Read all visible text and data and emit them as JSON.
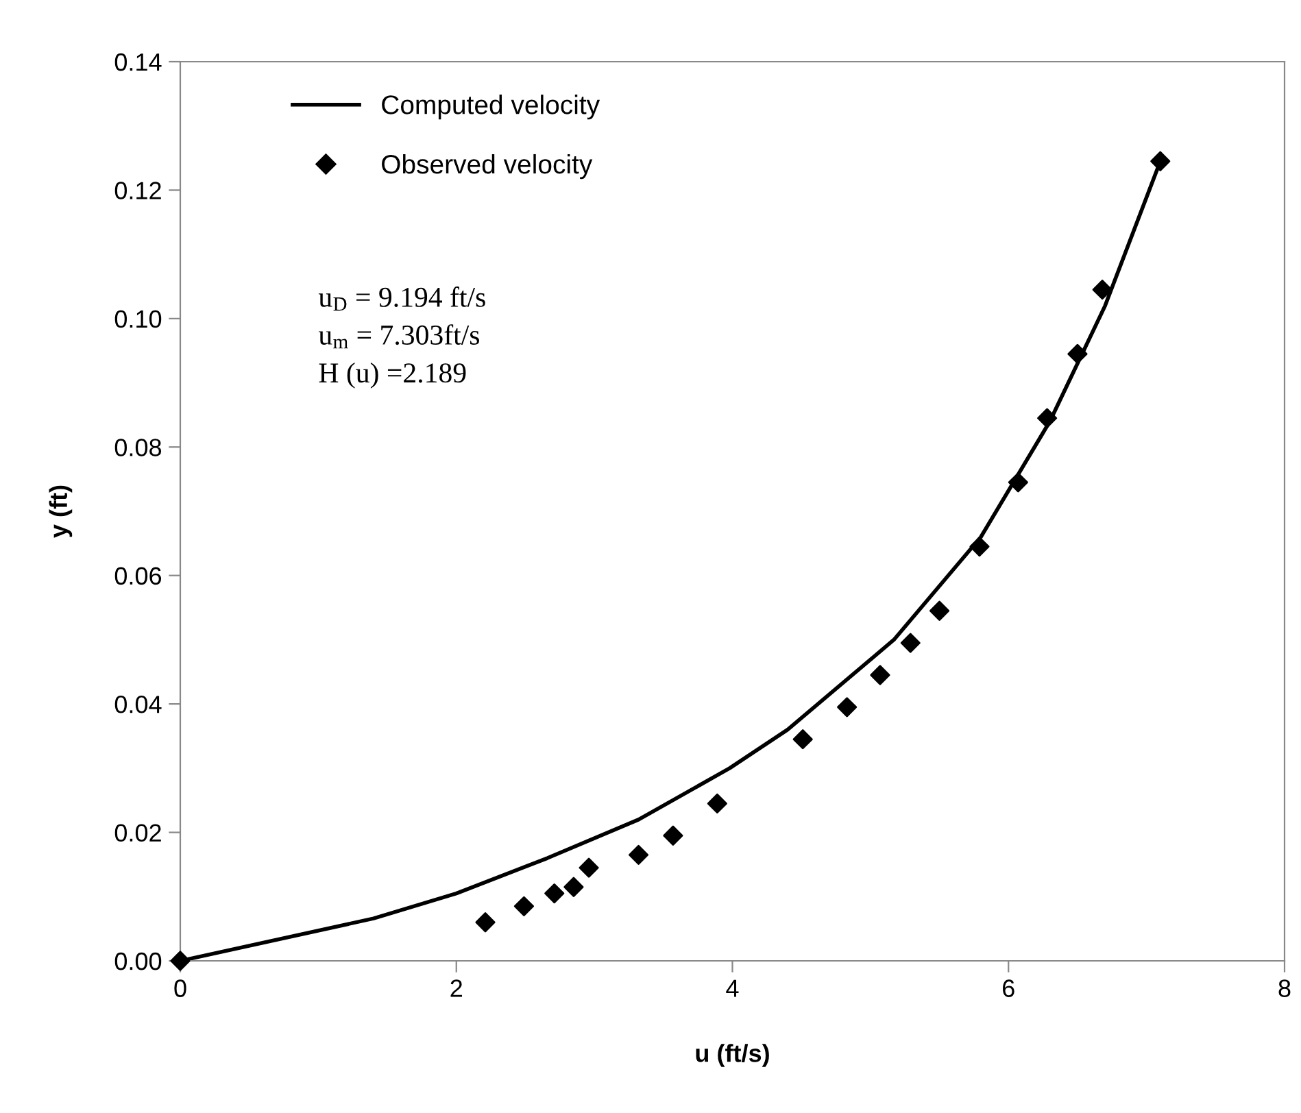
{
  "chart_data": {
    "type": "scatter",
    "xlabel": "u (ft/s)",
    "ylabel": "y (ft)",
    "series": [
      {
        "name": "Computed velocity",
        "type": "line",
        "color": "#000000",
        "marker": "none",
        "line_style": "solid",
        "x": [
          0,
          1.4,
          2,
          2.66,
          3.32,
          3.98,
          4.4,
          5.17,
          5.8,
          6.3,
          6.7,
          7.1
        ],
        "values": [
          0,
          0.0066,
          0.0105,
          0.016,
          0.022,
          0.03,
          0.036,
          0.05,
          0.066,
          0.084,
          0.102,
          0.1245
        ]
      },
      {
        "name": "Observed velocity",
        "color": "#000000",
        "marker": "diamond",
        "x": [
          0,
          2.21,
          2.49,
          2.71,
          2.85,
          2.96,
          3.32,
          3.57,
          3.89,
          4.51,
          4.83,
          5.07,
          5.29,
          5.5,
          5.79,
          6.07,
          6.28,
          6.5,
          6.68,
          7.1
        ],
        "values": [
          0,
          0.006,
          0.0085,
          0.0105,
          0.0115,
          0.0145,
          0.0165,
          0.0195,
          0.0245,
          0.0345,
          0.0395,
          0.0445,
          0.0495,
          0.0545,
          0.0645,
          0.0745,
          0.0845,
          0.0945,
          0.1045,
          0.1245
        ]
      }
    ],
    "annotations": [
      "u$_{D}$ = 9.194 ft/s",
      "u$_{m}$ = 7.303ft/s",
      "H (u) =2.189"
    ],
    "xlim": [
      0,
      8
    ],
    "xticks": [
      0,
      2,
      4,
      6,
      8
    ],
    "ylim": [
      0,
      0.14
    ],
    "yticks": [
      {
        "value": 0,
        "label": "0.00"
      },
      {
        "value": 0.02,
        "label": "0.02"
      },
      {
        "value": 0.04,
        "label": "0.04"
      },
      {
        "value": 0.06,
        "label": "0.06"
      },
      {
        "value": 0.08,
        "label": "0.08"
      },
      {
        "value": 0.1,
        "label": "0.10"
      },
      {
        "value": 0.12,
        "label": "0.12"
      },
      {
        "value": 0.14,
        "label": "0.14"
      }
    ],
    "grid": false,
    "legend": "top left"
  }
}
